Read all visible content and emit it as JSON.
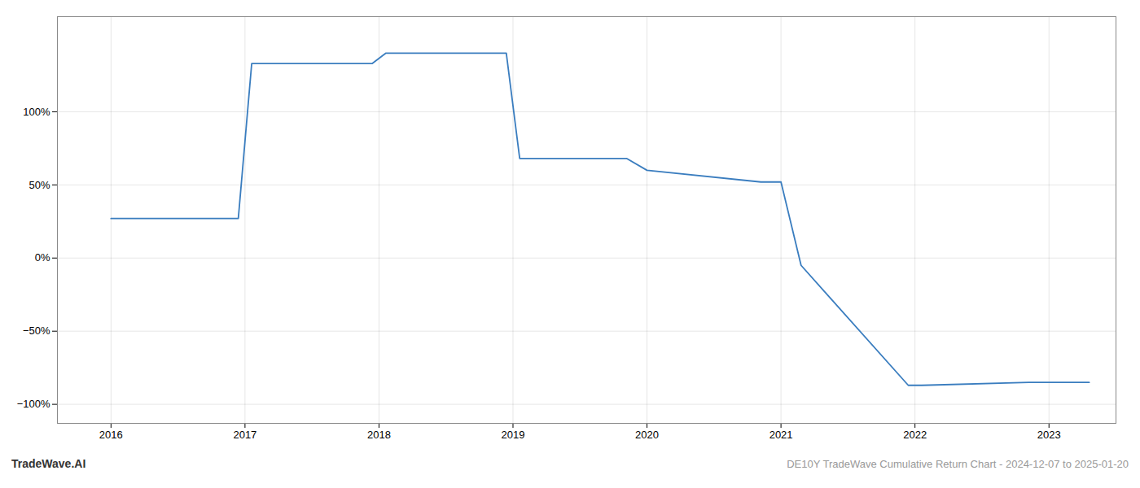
{
  "chart_data": {
    "type": "line",
    "x": [
      2016.0,
      2016.95,
      2017.05,
      2017.95,
      2018.05,
      2018.95,
      2019.05,
      2019.85,
      2020.0,
      2020.85,
      2021.0,
      2021.15,
      2021.95,
      2022.05,
      2022.85,
      2023.0,
      2023.3
    ],
    "values": [
      0.27,
      0.27,
      1.33,
      1.33,
      1.4,
      1.4,
      0.68,
      0.68,
      0.6,
      0.52,
      0.52,
      -0.05,
      -0.87,
      -0.87,
      -0.85,
      -0.85,
      -0.85
    ],
    "color": "#3a7dbf",
    "xlim": [
      2015.6,
      2023.5
    ],
    "xticks": [
      2016,
      2017,
      2018,
      2019,
      2020,
      2021,
      2022,
      2023
    ],
    "ylim": [
      -1.13,
      1.65
    ],
    "yticks": [
      {
        "value": -1.0,
        "label": "−100%"
      },
      {
        "value": -0.5,
        "label": "−50%"
      },
      {
        "value": 0.0,
        "label": "0%"
      },
      {
        "value": 0.5,
        "label": "50%"
      },
      {
        "value": 1.0,
        "label": "100%"
      }
    ],
    "grid": true,
    "annotations": [
      "TradeWave.AI",
      "DE10Y TradeWave Cumulative Return Chart - 2024-12-07 to 2025-01-20"
    ]
  }
}
